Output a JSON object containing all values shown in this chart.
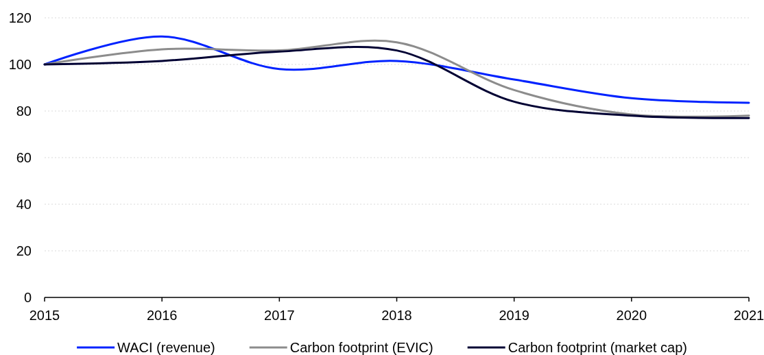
{
  "chart_data": {
    "type": "line",
    "x": [
      2015,
      2016,
      2017,
      2018,
      2019,
      2020,
      2021
    ],
    "xlim": [
      2015,
      2021
    ],
    "xticks": [
      2015,
      2016,
      2017,
      2018,
      2019,
      2020,
      2021
    ],
    "ylim": [
      0,
      120
    ],
    "yticks": [
      0,
      20,
      40,
      60,
      80,
      100,
      120
    ],
    "grid": "y",
    "legend": "bottom",
    "series": [
      {
        "name": "WACI (revenue)",
        "color": "#0022ff",
        "values": [
          100,
          112,
          98,
          101.5,
          93.5,
          85.5,
          83.5
        ]
      },
      {
        "name": "Carbon footprint (EVIC)",
        "color": "#8c8c8c",
        "values": [
          100,
          106.5,
          106,
          109.5,
          89,
          78.5,
          78
        ]
      },
      {
        "name": "Carbon footprint (market cap)",
        "color": "#000033",
        "values": [
          100,
          101.5,
          105.5,
          106,
          84,
          78,
          77
        ]
      }
    ]
  }
}
